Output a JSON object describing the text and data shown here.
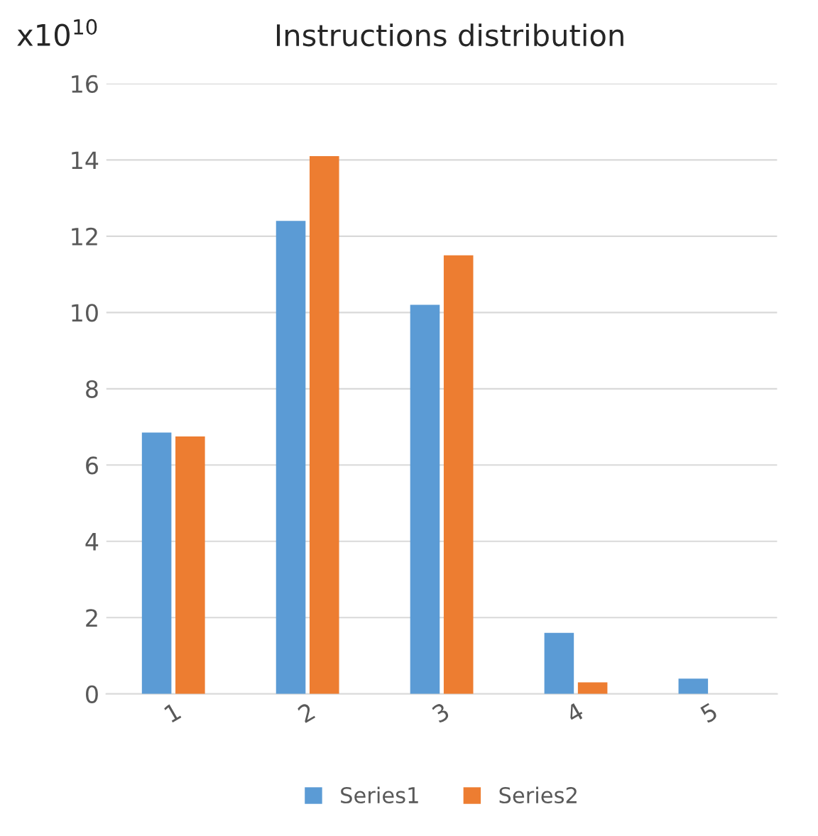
{
  "chart_data": {
    "type": "bar",
    "title": "Instructions distribution",
    "categories": [
      "1",
      "2",
      "3",
      "4",
      "5"
    ],
    "series": [
      {
        "name": "Series1",
        "color": "#5b9bd5",
        "values": [
          6.85,
          12.4,
          10.2,
          1.6,
          0.4
        ]
      },
      {
        "name": "Series2",
        "color": "#ed7d31",
        "values": [
          6.75,
          14.1,
          11.5,
          0.3,
          0
        ]
      }
    ],
    "ylim": [
      0,
      16
    ],
    "yticks": [
      0,
      2,
      4,
      6,
      8,
      10,
      12,
      14,
      16
    ],
    "annotations": [
      "x10$^{10}$"
    ],
    "grid": "y",
    "legend": "bottom"
  }
}
